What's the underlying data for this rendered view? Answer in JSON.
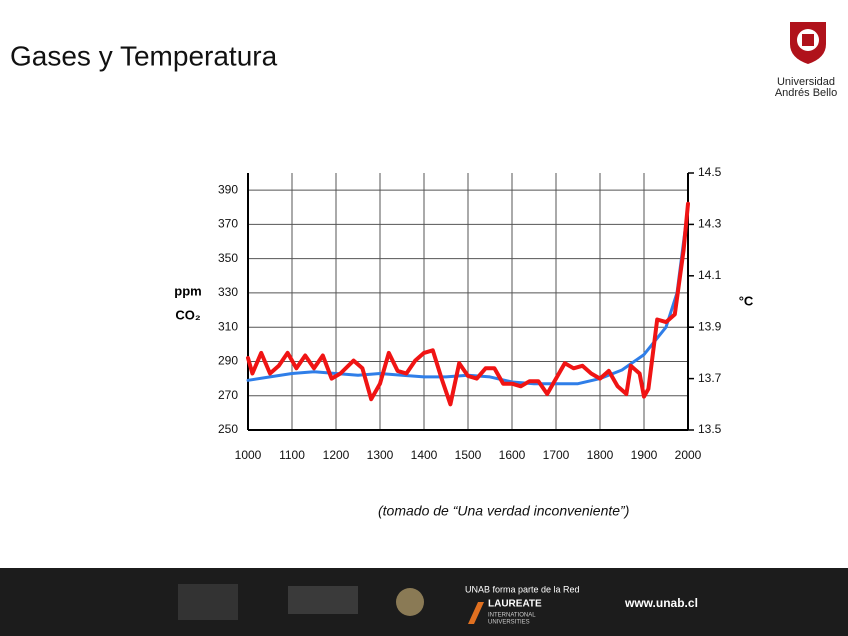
{
  "slide": {
    "title": "Gases y Temperatura",
    "caption": "(tomado de “Una verdad inconveniente”)"
  },
  "logo": {
    "line1": "Universidad",
    "line2": "Andrés Bello"
  },
  "footer": {
    "network": "UNAB forma parte de la Red",
    "laureate": "LAUREATE",
    "laureate_sub1": "INTERNATIONAL",
    "laureate_sub2": "UNIVERSITIES",
    "url": "www.unab.cl"
  },
  "chart_data": {
    "type": "line",
    "y_label_unit": "ppm",
    "y_label": "CO₂",
    "y2_label": "°C",
    "xlim": [
      1000,
      2000
    ],
    "xticks": [
      1000,
      1100,
      1200,
      1300,
      1400,
      1500,
      1600,
      1700,
      1800,
      1900,
      2000
    ],
    "ylim": [
      250,
      400
    ],
    "yticks": [
      250,
      270,
      290,
      310,
      330,
      350,
      370,
      390
    ],
    "y2lim": [
      13.5,
      14.5
    ],
    "y2ticks": [
      13.5,
      13.7,
      13.9,
      14.1,
      14.3,
      14.5
    ],
    "grid": true,
    "series": [
      {
        "name": "CO₂",
        "color": "#2f7ee8",
        "axis": "y",
        "x": [
          1000,
          1050,
          1100,
          1150,
          1200,
          1250,
          1300,
          1350,
          1400,
          1450,
          1500,
          1550,
          1600,
          1650,
          1700,
          1750,
          1800,
          1850,
          1900,
          1950,
          1975,
          2000
        ],
        "values": [
          279,
          281,
          283,
          284,
          283,
          282,
          283,
          282,
          281,
          281,
          282,
          281,
          278,
          277,
          277,
          277,
          280,
          285,
          294,
          310,
          330,
          380
        ]
      },
      {
        "name": "°C",
        "color": "#f01414",
        "axis": "y2",
        "x": [
          1000,
          1010,
          1030,
          1050,
          1070,
          1090,
          1110,
          1130,
          1150,
          1170,
          1190,
          1210,
          1240,
          1260,
          1280,
          1300,
          1320,
          1340,
          1360,
          1380,
          1400,
          1420,
          1440,
          1460,
          1480,
          1500,
          1520,
          1540,
          1560,
          1580,
          1600,
          1620,
          1640,
          1660,
          1680,
          1700,
          1720,
          1740,
          1760,
          1780,
          1800,
          1820,
          1840,
          1860,
          1870,
          1890,
          1900,
          1910,
          1930,
          1950,
          1970,
          1990,
          2000
        ],
        "values": [
          13.78,
          13.72,
          13.8,
          13.72,
          13.75,
          13.8,
          13.74,
          13.79,
          13.74,
          13.79,
          13.7,
          13.72,
          13.77,
          13.74,
          13.62,
          13.68,
          13.8,
          13.73,
          13.72,
          13.77,
          13.8,
          13.81,
          13.7,
          13.6,
          13.76,
          13.71,
          13.7,
          13.74,
          13.74,
          13.68,
          13.68,
          13.67,
          13.69,
          13.69,
          13.64,
          13.7,
          13.76,
          13.74,
          13.75,
          13.72,
          13.7,
          13.73,
          13.67,
          13.64,
          13.75,
          13.72,
          13.63,
          13.66,
          13.93,
          13.92,
          13.95,
          14.2,
          14.38
        ]
      }
    ]
  }
}
